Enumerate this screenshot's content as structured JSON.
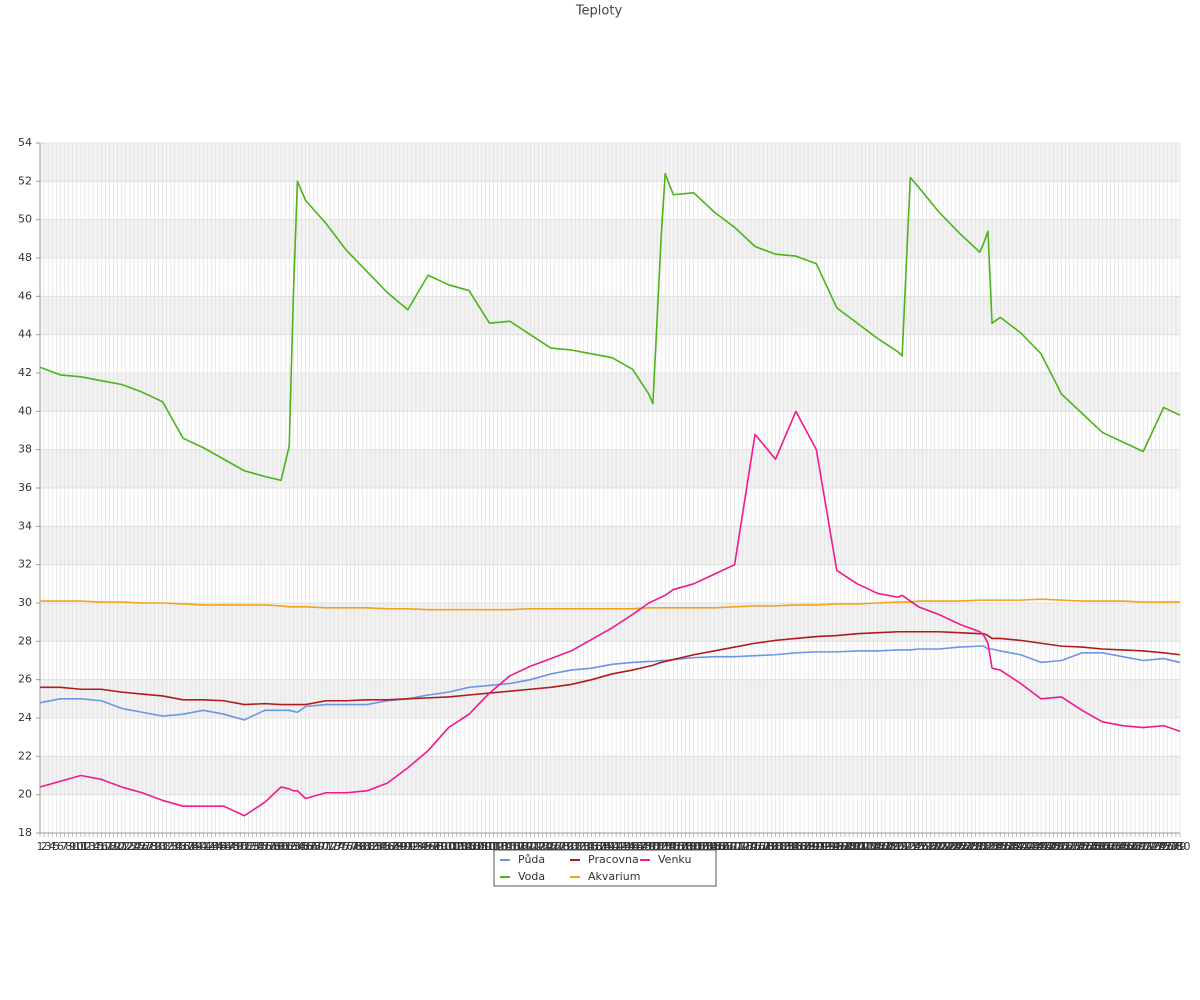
{
  "chart_data": {
    "type": "line",
    "title": "Teploty",
    "x": [
      1,
      6,
      11,
      16,
      21,
      26,
      31,
      36,
      41,
      46,
      51,
      56,
      60,
      62,
      63,
      64,
      66,
      71,
      76,
      81,
      86,
      91,
      96,
      101,
      106,
      111,
      116,
      121,
      126,
      131,
      136,
      141,
      146,
      150,
      151,
      153,
      154,
      156,
      161,
      166,
      171,
      176,
      181,
      186,
      191,
      196,
      201,
      206,
      211,
      212,
      214,
      216,
      221,
      226,
      231,
      232,
      233,
      234,
      236,
      241,
      246,
      251,
      256,
      261,
      266,
      271,
      276,
      280
    ],
    "xlim": [
      1,
      280
    ],
    "xticks": [
      1,
      2,
      3,
      4,
      5,
      6,
      7,
      8,
      9,
      10,
      11,
      12,
      13,
      14,
      15,
      16,
      17,
      18,
      19,
      20,
      21,
      22,
      23,
      24,
      25,
      26,
      27,
      28,
      29,
      30,
      31,
      32,
      33,
      34,
      35,
      36,
      37,
      38,
      39,
      40,
      41,
      42,
      43,
      44,
      45,
      46,
      47,
      48,
      49,
      50,
      51,
      52,
      53,
      54,
      55,
      56,
      57,
      58,
      59,
      60,
      61,
      62,
      63,
      64,
      65,
      66,
      67,
      68,
      69,
      70,
      71,
      72,
      73,
      74,
      75,
      76,
      77,
      78,
      79,
      80,
      81,
      82,
      83,
      84,
      85,
      86,
      87,
      88,
      89,
      90,
      91,
      92,
      93,
      94,
      95,
      96,
      97,
      98,
      99,
      100,
      101,
      102,
      103,
      104,
      105,
      106,
      107,
      108,
      109,
      110,
      111,
      112,
      113,
      114,
      115,
      116,
      117,
      118,
      119,
      120,
      121,
      122,
      123,
      124,
      125,
      126,
      127,
      128,
      129,
      130,
      131,
      132,
      133,
      134,
      135,
      136,
      137,
      138,
      139,
      140,
      141,
      142,
      143,
      144,
      145,
      146,
      147,
      148,
      149,
      150,
      151,
      152,
      153,
      154,
      155,
      156,
      157,
      158,
      159,
      160,
      161,
      162,
      163,
      164,
      165,
      166,
      167,
      168,
      169,
      170,
      171,
      172,
      173,
      174,
      175,
      176,
      177,
      178,
      179,
      180,
      181,
      182,
      183,
      184,
      185,
      186,
      187,
      188,
      189,
      190,
      191,
      192,
      193,
      194,
      195,
      196,
      197,
      198,
      199,
      200,
      201,
      202,
      203,
      204,
      205,
      206,
      207,
      208,
      209,
      210,
      211,
      212,
      213,
      214,
      215,
      216,
      217,
      218,
      219,
      220,
      221,
      222,
      223,
      224,
      225,
      226,
      227,
      228,
      229,
      230,
      231,
      232,
      233,
      234,
      235,
      236,
      237,
      238,
      239,
      240,
      241,
      242,
      243,
      244,
      245,
      246,
      247,
      248,
      249,
      250,
      251,
      252,
      253,
      254,
      255,
      256,
      257,
      258,
      259,
      260,
      261,
      262,
      263,
      264,
      265,
      266,
      267,
      268,
      269,
      270,
      271,
      272,
      273,
      274,
      275,
      276,
      277,
      278,
      279,
      280
    ],
    "ylim": [
      18,
      54
    ],
    "yticks": [
      18,
      20,
      22,
      24,
      26,
      28,
      30,
      32,
      34,
      36,
      38,
      40,
      42,
      44,
      46,
      48,
      50,
      52,
      54
    ],
    "grid": true,
    "legend": "bottom",
    "series": [
      {
        "name": "Půda",
        "color": "#6b96e6",
        "values": [
          24.8,
          25.0,
          25.0,
          24.9,
          24.5,
          24.3,
          24.1,
          24.2,
          24.4,
          24.2,
          23.9,
          24.4,
          24.4,
          24.4,
          24.35,
          24.3,
          24.6,
          24.7,
          24.7,
          24.7,
          24.9,
          25.0,
          25.2,
          25.35,
          25.6,
          25.7,
          25.8,
          26.0,
          26.3,
          26.5,
          26.6,
          26.8,
          26.9,
          26.95,
          26.95,
          27.0,
          27.0,
          27.05,
          27.15,
          27.2,
          27.2,
          27.25,
          27.3,
          27.4,
          27.45,
          27.45,
          27.5,
          27.5,
          27.55,
          27.55,
          27.55,
          27.6,
          27.6,
          27.7,
          27.75,
          27.75,
          27.6,
          27.6,
          27.5,
          27.3,
          26.9,
          27.0,
          27.4,
          27.4,
          27.2,
          27.0,
          27.1,
          26.9
        ]
      },
      {
        "name": "Voda",
        "color": "#4db31a",
        "values": [
          42.3,
          41.9,
          41.8,
          41.6,
          41.4,
          41.0,
          40.5,
          38.6,
          38.1,
          37.5,
          36.9,
          36.6,
          36.4,
          38.2,
          46,
          52.0,
          51,
          49.8,
          48.4,
          47.3,
          46.2,
          45.3,
          47.1,
          46.6,
          46.3,
          44.6,
          44.7,
          44.0,
          43.3,
          43.2,
          43.0,
          42.8,
          42.2,
          40.9,
          40.4,
          49.0,
          52.4,
          51.3,
          51.4,
          50.4,
          49.6,
          48.6,
          48.2,
          48.1,
          47.7,
          45.4,
          44.6,
          43.8,
          43.1,
          42.9,
          52.2,
          51.7,
          50.4,
          49.3,
          48.3,
          48.8,
          49.4,
          44.6,
          44.9,
          44.1,
          43.0,
          40.9,
          39.9,
          38.9,
          38.4,
          37.9,
          40.2,
          39.8
        ]
      },
      {
        "name": "Pracovna",
        "color": "#b01c1c",
        "values": [
          25.6,
          25.6,
          25.5,
          25.5,
          25.35,
          25.25,
          25.15,
          24.95,
          24.95,
          24.9,
          24.7,
          24.75,
          24.7,
          24.7,
          24.7,
          24.7,
          24.7,
          24.9,
          24.9,
          24.95,
          24.95,
          25.0,
          25.05,
          25.1,
          25.2,
          25.3,
          25.4,
          25.5,
          25.6,
          25.75,
          26.0,
          26.3,
          26.5,
          26.7,
          26.75,
          26.9,
          26.95,
          27.05,
          27.3,
          27.5,
          27.7,
          27.9,
          28.05,
          28.15,
          28.25,
          28.3,
          28.4,
          28.45,
          28.5,
          28.5,
          28.5,
          28.5,
          28.5,
          28.45,
          28.4,
          28.4,
          28.3,
          28.15,
          28.15,
          28.05,
          27.9,
          27.75,
          27.7,
          27.6,
          27.55,
          27.5,
          27.4,
          27.3
        ]
      },
      {
        "name": "Akvarium",
        "color": "#f2a31a",
        "values": [
          30.1,
          30.1,
          30.1,
          30.05,
          30.05,
          30.0,
          30.0,
          29.95,
          29.9,
          29.9,
          29.9,
          29.9,
          29.85,
          29.8,
          29.8,
          29.8,
          29.8,
          29.75,
          29.75,
          29.75,
          29.7,
          29.7,
          29.65,
          29.65,
          29.65,
          29.65,
          29.65,
          29.7,
          29.7,
          29.7,
          29.7,
          29.7,
          29.7,
          29.75,
          29.75,
          29.75,
          29.75,
          29.75,
          29.75,
          29.75,
          29.8,
          29.85,
          29.85,
          29.9,
          29.9,
          29.95,
          29.95,
          30.0,
          30.05,
          30.05,
          30.05,
          30.1,
          30.1,
          30.1,
          30.15,
          30.15,
          30.15,
          30.15,
          30.15,
          30.15,
          30.2,
          30.15,
          30.1,
          30.1,
          30.1,
          30.05,
          30.05,
          30.05
        ]
      },
      {
        "name": "Venku",
        "color": "#f01a8c",
        "values": [
          20.4,
          20.7,
          21.0,
          20.8,
          20.4,
          20.1,
          19.7,
          19.4,
          19.4,
          19.4,
          18.9,
          19.6,
          20.4,
          20.3,
          20.2,
          20.2,
          19.8,
          20.1,
          20.1,
          20.2,
          20.6,
          21.4,
          22.3,
          23.5,
          24.2,
          25.3,
          26.2,
          26.7,
          27.1,
          27.5,
          28.1,
          28.7,
          29.4,
          30.0,
          30.1,
          30.3,
          30.4,
          30.7,
          31.0,
          31.5,
          32.0,
          38.8,
          37.5,
          40.0,
          38.0,
          31.7,
          31.0,
          30.5,
          30.3,
          30.4,
          30.1,
          29.8,
          29.4,
          28.9,
          28.5,
          28.3,
          27.9,
          26.6,
          26.5,
          25.8,
          25.0,
          25.1,
          24.4,
          23.8,
          23.6,
          23.5,
          23.6,
          23.3
        ]
      }
    ]
  }
}
